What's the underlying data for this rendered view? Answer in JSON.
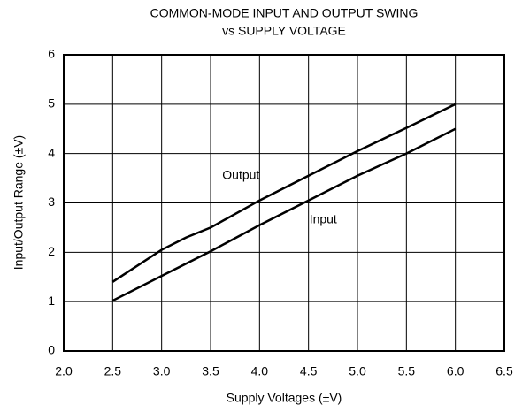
{
  "chart_data": {
    "type": "line",
    "title": [
      "COMMON-MODE INPUT AND OUTPUT SWING",
      "vs SUPPLY VOLTAGE"
    ],
    "x_label": "Supply Voltages (±V)",
    "y_label": "Input/Output Range (±V)",
    "series": [
      {
        "name": "Output",
        "color": "#000000",
        "x": [
          2.5,
          3.0,
          3.25,
          3.5,
          4.0,
          4.5,
          5.0,
          5.5,
          6.0
        ],
        "values": [
          1.4,
          2.05,
          2.3,
          2.5,
          3.05,
          3.55,
          4.05,
          4.52,
          5.0
        ]
      },
      {
        "name": "Input",
        "color": "#000000",
        "x": [
          2.5,
          3.0,
          3.5,
          4.0,
          4.5,
          5.0,
          5.5,
          6.0
        ],
        "values": [
          1.02,
          1.52,
          2.02,
          2.55,
          3.05,
          3.55,
          4.0,
          4.5
        ]
      }
    ],
    "xlim": [
      2.0,
      6.5
    ],
    "xticks": [
      {
        "value": 2,
        "label": "2.0"
      },
      {
        "value": 2.5,
        "label": "2.5"
      },
      {
        "value": 3,
        "label": "3.0"
      },
      {
        "value": 3.5,
        "label": "3.5"
      },
      {
        "value": 4,
        "label": "4.0"
      },
      {
        "value": 4.5,
        "label": "4.5"
      },
      {
        "value": 5,
        "label": "5.0"
      },
      {
        "value": 5.5,
        "label": "5.5"
      },
      {
        "value": 6,
        "label": "6.0"
      },
      {
        "value": 6.5,
        "label": "6.5"
      }
    ],
    "ylim": [
      0,
      6
    ],
    "yticks": [
      0,
      1,
      2,
      3,
      4,
      5,
      6
    ],
    "grid": true
  }
}
